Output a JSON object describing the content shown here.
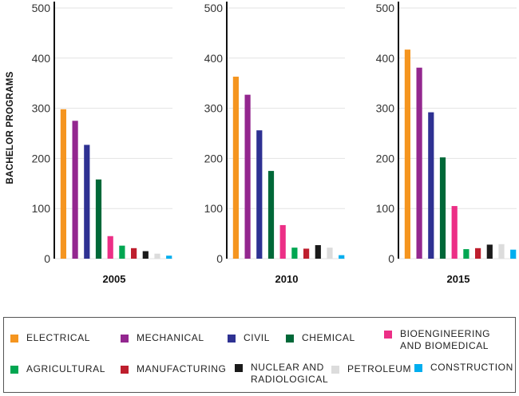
{
  "chart_data": {
    "type": "bar",
    "ylabel": "BACHELOR PROGRAMS",
    "ylim": [
      0,
      500
    ],
    "yticks": [
      0,
      100,
      200,
      300,
      400,
      500
    ],
    "series_names": [
      "ELECTRICAL",
      "MECHANICAL",
      "CIVIL",
      "CHEMICAL",
      "BIOENGINEERING AND BIOMEDICAL",
      "AGRICULTURAL",
      "MANUFACTURING",
      "NUCLEAR AND RADIOLOGICAL",
      "PETROLEUM",
      "CONSTRUCTION"
    ],
    "colors": [
      "#f5951f",
      "#93278f",
      "#2e3192",
      "#006838",
      "#ec2f86",
      "#00a651",
      "#be1e2d",
      "#1a1a1a",
      "#dcdcdc",
      "#00aeef"
    ],
    "panels": [
      {
        "year": "2005",
        "values": [
          298,
          275,
          227,
          158,
          45,
          26,
          21,
          15,
          10,
          6
        ]
      },
      {
        "year": "2010",
        "values": [
          363,
          327,
          256,
          175,
          67,
          22,
          20,
          27,
          22,
          7
        ]
      },
      {
        "year": "2015",
        "values": [
          417,
          381,
          292,
          202,
          105,
          19,
          21,
          28,
          29,
          18
        ]
      }
    ]
  },
  "legend": {
    "items": [
      {
        "label": "ELECTRICAL",
        "color": "#f5951f"
      },
      {
        "label": "MECHANICAL",
        "color": "#93278f"
      },
      {
        "label": "CIVIL",
        "color": "#2e3192"
      },
      {
        "label": "CHEMICAL",
        "color": "#006838"
      },
      {
        "label": "BIOENGINEERING\nAND BIOMEDICAL",
        "color": "#ec2f86"
      },
      {
        "label": "AGRICULTURAL",
        "color": "#00a651"
      },
      {
        "label": "MANUFACTURING",
        "color": "#be1e2d"
      },
      {
        "label": "NUCLEAR AND\nRADIOLOGICAL",
        "color": "#1a1a1a"
      },
      {
        "label": "PETROLEUM",
        "color": "#dcdcdc"
      },
      {
        "label": "CONSTRUCTION",
        "color": "#00aeef"
      }
    ]
  }
}
